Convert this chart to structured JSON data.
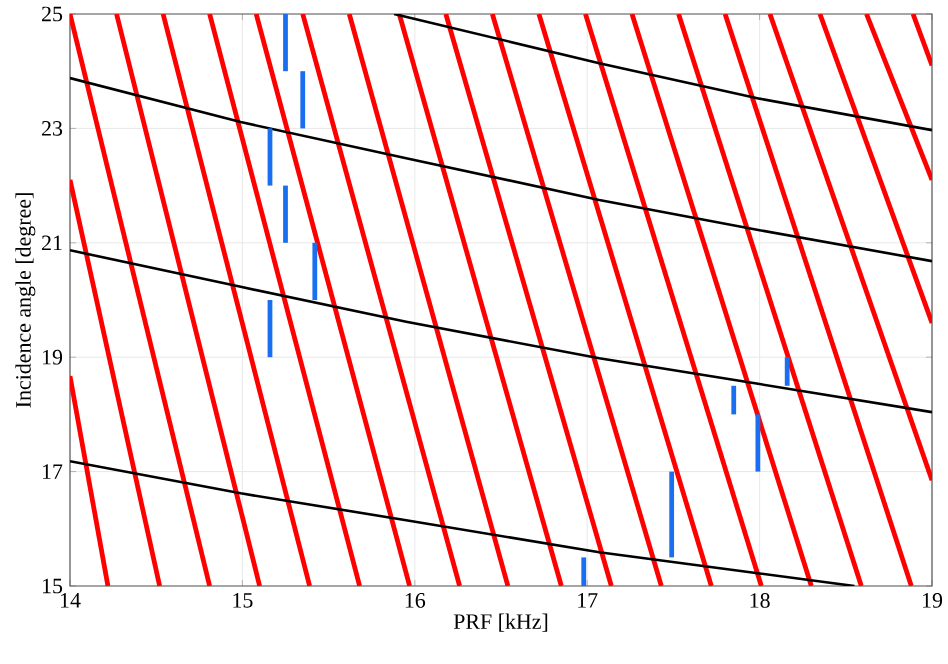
{
  "chart_data": {
    "type": "line",
    "xlabel": "PRF [kHz]",
    "ylabel": "Incidence angle [degree]",
    "xlim": [
      14,
      19
    ],
    "ylim": [
      15,
      25
    ],
    "xticks": [
      14,
      15,
      16,
      17,
      18,
      19
    ],
    "yticks": [
      15,
      17,
      19,
      21,
      23,
      25
    ],
    "grid": true,
    "marker": "none",
    "line_style": "solid",
    "series": [
      {
        "color": "#ff0000",
        "x": [
          14,
          14.22
        ],
        "values": [
          18.67,
          15
        ]
      },
      {
        "color": "#ff0000",
        "x": [
          14,
          14.52
        ],
        "values": [
          22.1,
          15
        ]
      },
      {
        "color": "#ff0000",
        "x": [
          14.0,
          14.81
        ],
        "values": [
          25,
          15
        ]
      },
      {
        "color": "#ff0000",
        "x": [
          14.27,
          15.1
        ],
        "values": [
          25,
          15
        ]
      },
      {
        "color": "#ff0000",
        "x": [
          14.54,
          15.39
        ],
        "values": [
          25,
          15
        ]
      },
      {
        "color": "#ff0000",
        "x": [
          14.81,
          15.68
        ],
        "values": [
          25,
          15
        ]
      },
      {
        "color": "#ff0000",
        "x": [
          15.08,
          15.97
        ],
        "values": [
          25,
          15
        ]
      },
      {
        "color": "#ff0000",
        "x": [
          15.35,
          16.26
        ],
        "values": [
          25,
          15
        ]
      },
      {
        "color": "#ff0000",
        "x": [
          15.62,
          16.54
        ],
        "values": [
          25,
          15
        ]
      },
      {
        "color": "#ff0000",
        "x": [
          15.91,
          16.85
        ],
        "values": [
          25,
          15
        ]
      },
      {
        "color": "#ff0000",
        "x": [
          16.18,
          17.14
        ],
        "values": [
          25,
          15
        ]
      },
      {
        "color": "#ff0000",
        "x": [
          16.45,
          17.43
        ],
        "values": [
          25,
          15
        ]
      },
      {
        "color": "#ff0000",
        "x": [
          16.72,
          17.72
        ],
        "values": [
          25,
          15
        ]
      },
      {
        "color": "#ff0000",
        "x": [
          16.99,
          18.01
        ],
        "values": [
          25,
          15
        ]
      },
      {
        "color": "#ff0000",
        "x": [
          17.26,
          18.3
        ],
        "values": [
          25,
          15
        ]
      },
      {
        "color": "#ff0000",
        "x": [
          17.53,
          18.59
        ],
        "values": [
          25,
          15
        ]
      },
      {
        "color": "#ff0000",
        "x": [
          17.8,
          18.88
        ],
        "values": [
          25,
          15
        ]
      },
      {
        "color": "#ff0000",
        "x": [
          18.06,
          19
        ],
        "values": [
          25,
          16.85
        ]
      },
      {
        "color": "#ff0000",
        "x": [
          18.35,
          19
        ],
        "values": [
          25,
          19.6
        ]
      },
      {
        "color": "#ff0000",
        "x": [
          18.62,
          19
        ],
        "values": [
          25,
          22.1
        ]
      },
      {
        "color": "#ff0000",
        "x": [
          18.89,
          19
        ],
        "values": [
          25,
          24.1
        ]
      },
      {
        "color": "#000000",
        "x": [
          15.88,
          17.07,
          18.0,
          19
        ],
        "values": [
          25,
          24.14,
          23.52,
          22.97
        ]
      },
      {
        "color": "#000000",
        "x": [
          14,
          14.99,
          15.95,
          17.07,
          18.0,
          19
        ],
        "values": [
          23.88,
          23.11,
          22.48,
          21.75,
          21.22,
          20.68
        ]
      },
      {
        "color": "#000000",
        "x": [
          14,
          14.99,
          15.95,
          17.07,
          18.0,
          19
        ],
        "values": [
          20.87,
          20.23,
          19.62,
          18.98,
          18.53,
          18.04
        ]
      },
      {
        "color": "#000000",
        "x": [
          14,
          14.99,
          15.95,
          17.07,
          18.0,
          18.55
        ],
        "values": [
          17.18,
          16.62,
          16.15,
          15.59,
          15.22,
          15
        ]
      },
      {
        "color": "#1a6ff0",
        "x": [
          15.25,
          15.25
        ],
        "values": [
          24.0,
          25
        ]
      },
      {
        "color": "#1a6ff0",
        "x": [
          15.35,
          15.35
        ],
        "values": [
          23.0,
          24.0
        ]
      },
      {
        "color": "#1a6ff0",
        "x": [
          15.16,
          15.16
        ],
        "values": [
          22.0,
          23.0
        ]
      },
      {
        "color": "#1a6ff0",
        "x": [
          15.25,
          15.25
        ],
        "values": [
          21.0,
          22.0
        ]
      },
      {
        "color": "#1a6ff0",
        "x": [
          15.42,
          15.42
        ],
        "values": [
          20.0,
          21.0
        ]
      },
      {
        "color": "#1a6ff0",
        "x": [
          15.16,
          15.16
        ],
        "values": [
          19.0,
          20.0
        ]
      },
      {
        "color": "#1a6ff0",
        "x": [
          16.98,
          16.98
        ],
        "values": [
          15.0,
          15.5
        ]
      },
      {
        "color": "#1a6ff0",
        "x": [
          17.49,
          17.49
        ],
        "values": [
          15.5,
          17.0
        ]
      },
      {
        "color": "#1a6ff0",
        "x": [
          17.85,
          17.85
        ],
        "values": [
          18.0,
          18.5
        ]
      },
      {
        "color": "#1a6ff0",
        "x": [
          17.99,
          17.99
        ],
        "values": [
          17.0,
          18.0
        ]
      },
      {
        "color": "#1a6ff0",
        "x": [
          18.16,
          18.16
        ],
        "values": [
          18.5,
          19.0
        ]
      }
    ]
  }
}
